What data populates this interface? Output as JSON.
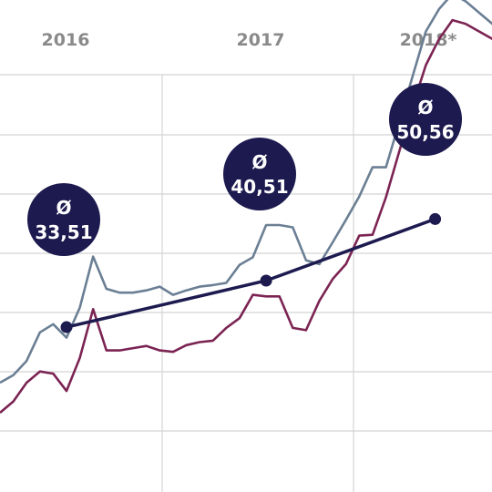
{
  "chart_data": {
    "type": "line",
    "x_labels": [
      "2016",
      "2017",
      "2018*"
    ],
    "xlim": [
      0,
      38
    ],
    "ylim": [
      0,
      63
    ],
    "grid": true,
    "series": [
      {
        "color": "#6b7f94",
        "x": [
          0,
          1,
          2,
          3,
          4,
          5,
          6,
          7,
          8,
          9,
          10,
          11,
          12,
          13,
          14,
          15,
          16,
          17,
          18,
          19,
          20,
          21,
          22,
          23,
          24,
          25,
          26,
          27,
          28,
          29,
          30,
          31,
          32,
          33,
          34,
          35,
          36,
          37,
          38
        ],
        "values": [
          14.2,
          15.2,
          17.1,
          20.9,
          22.0,
          20.2,
          24.2,
          31.0,
          26.7,
          26.2,
          26.2,
          26.5,
          27.0,
          25.9,
          26.5,
          27.0,
          27.2,
          27.5,
          29.9,
          30.9,
          35.2,
          35.2,
          34.9,
          30.5,
          30.0,
          32.9,
          35.9,
          39.0,
          42.9,
          42.9,
          48.9,
          55.0,
          61.0,
          64.0,
          66.0,
          65.0,
          63.5,
          62.0,
          60.5
        ]
      },
      {
        "color": "#7b2453",
        "x": [
          0,
          1,
          2,
          3,
          4,
          5,
          6,
          7,
          8,
          9,
          10,
          11,
          12,
          13,
          14,
          15,
          16,
          17,
          18,
          19,
          20,
          21,
          22,
          23,
          24,
          25,
          26,
          27,
          28,
          29,
          30,
          31,
          32,
          33,
          34,
          35,
          36,
          37,
          38
        ],
        "values": [
          10.2,
          11.7,
          14.2,
          15.7,
          15.4,
          13.1,
          17.5,
          24.0,
          18.5,
          18.5,
          18.8,
          19.1,
          18.5,
          18.3,
          19.2,
          19.6,
          19.8,
          21.5,
          22.8,
          25.9,
          25.7,
          25.7,
          21.5,
          21.2,
          25.1,
          28.0,
          30.0,
          33.8,
          33.9,
          38.9,
          45.0,
          51.0,
          56.5,
          60.0,
          62.5,
          62.0,
          61.0,
          60.0,
          59.0
        ]
      }
    ],
    "averages": [
      {
        "label": "33,51",
        "x": 5,
        "y": 21.6
      },
      {
        "label": "40,51",
        "x": 20,
        "y": 27.8
      },
      {
        "label": "50,56",
        "x": 32.7,
        "y": 36.0
      }
    ],
    "avg_symbol": "Ø",
    "colors": {
      "average": "#1c1a4f",
      "grid": "#d4d4d4"
    }
  }
}
